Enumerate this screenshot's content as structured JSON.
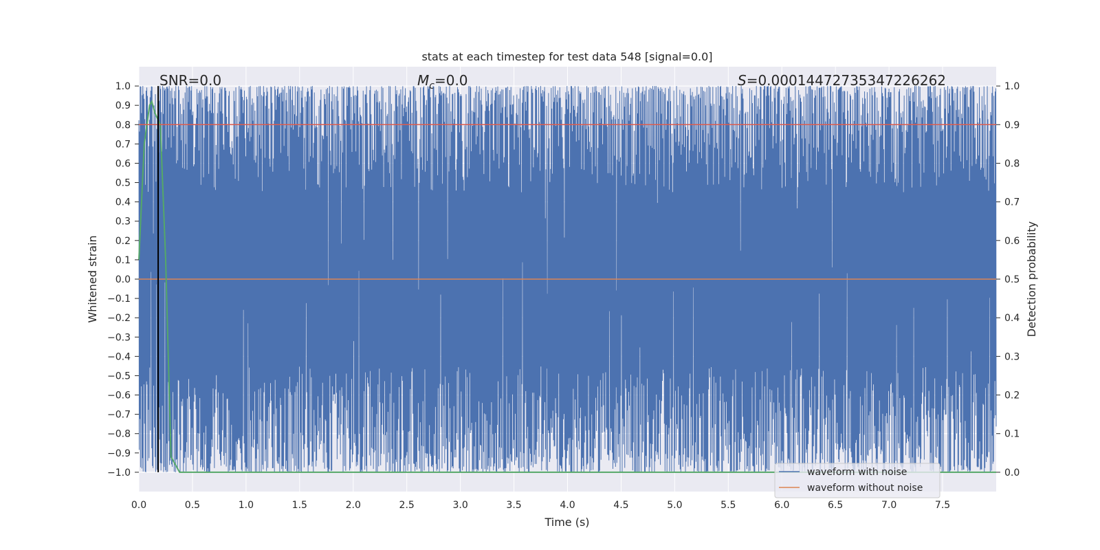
{
  "chart_data": {
    "type": "line",
    "title": "stats at each timestep for test data 548 [signal=0.0]",
    "xlabel": "Time (s)",
    "ylabel": "Whitened strain",
    "y2label": "Detection probability",
    "xlim": [
      0.0,
      8.0
    ],
    "ylim": [
      -1.1,
      1.1
    ],
    "y2lim": [
      -0.05,
      1.05
    ],
    "xticks": [
      "0.0",
      "0.5",
      "1.0",
      "1.5",
      "2.0",
      "2.5",
      "3.0",
      "3.5",
      "4.0",
      "4.5",
      "5.0",
      "5.5",
      "6.0",
      "6.5",
      "7.0",
      "7.5"
    ],
    "yticks": [
      "1.0",
      "0.9",
      "0.8",
      "0.7",
      "0.6",
      "0.5",
      "0.4",
      "0.3",
      "0.2",
      "0.1",
      "0.0",
      "−0.1",
      "−0.2",
      "−0.3",
      "−0.4",
      "−0.5",
      "−0.6",
      "−0.7",
      "−0.8",
      "−0.9",
      "−1.0"
    ],
    "y2ticks": [
      "1.0",
      "0.9",
      "0.8",
      "0.7",
      "0.6",
      "0.5",
      "0.4",
      "0.3",
      "0.2",
      "0.1",
      "0.0"
    ],
    "grid": true,
    "legend_position": "lower-right",
    "annotations": {
      "snr": "SNR=0.0",
      "mc_symbol": "M",
      "mc_sub": "c",
      "mc_value": "=0.0",
      "s_symbol": "S",
      "s_value": "=0.00014472735347226262"
    },
    "series": [
      {
        "name": "waveform with noise",
        "axis": "left",
        "color": "#4c72b0",
        "description_range": [
          -1.0,
          1.0
        ]
      },
      {
        "name": "waveform without noise",
        "axis": "left",
        "color": "#dd8452",
        "x": [
          0.0,
          8.0
        ],
        "y": [
          0.0,
          0.0
        ]
      },
      {
        "axis": "right",
        "color": "#55a868",
        "x": [
          0.0,
          0.05,
          0.1,
          0.12,
          0.15,
          0.2,
          0.25,
          0.3,
          0.38,
          0.5,
          1.0,
          2.0,
          3.0,
          4.0,
          5.0,
          6.0,
          7.0,
          8.0
        ],
        "y": [
          0.55,
          0.85,
          0.95,
          0.96,
          0.93,
          0.9,
          0.55,
          0.04,
          0.0,
          0.0,
          0.0,
          0.0,
          0.0,
          0.0,
          0.0,
          0.0,
          0.0,
          0.0
        ]
      },
      {
        "axis": "right",
        "color": "#dd5c4e",
        "x": [
          0.0,
          8.0
        ],
        "y": [
          0.9,
          0.9
        ]
      }
    ],
    "vline_x": 0.18
  }
}
